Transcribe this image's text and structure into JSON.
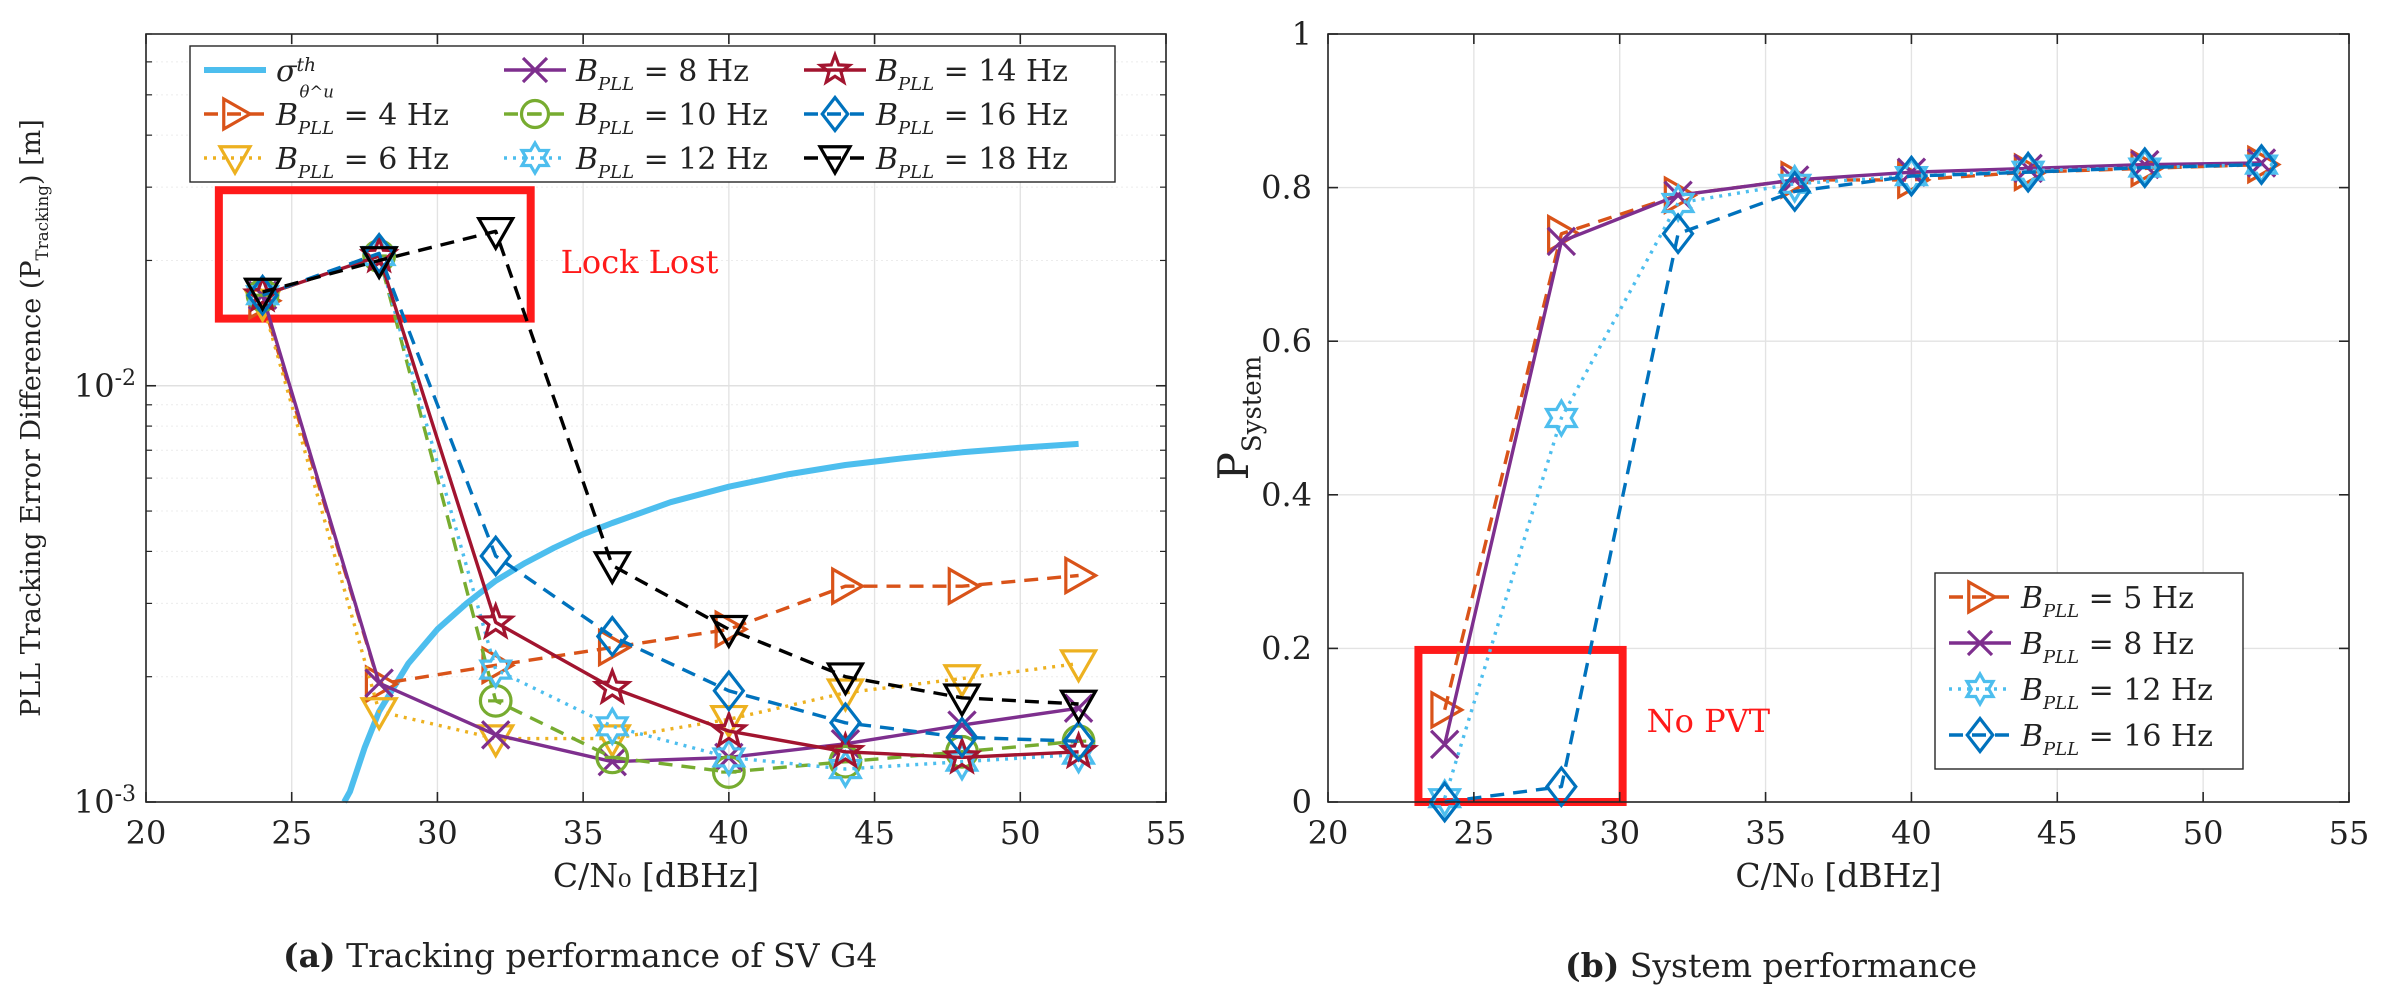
{
  "chart_data": [
    {
      "type": "line",
      "title": "",
      "xlabel": "C/N₀ [dBHz]",
      "ylabel": "PLL Tracking Error Difference (P_Tracking) [m]",
      "xlim": [
        20,
        55
      ],
      "ylim": [
        0.001,
        0.07
      ],
      "yscale": "log",
      "grid": true,
      "legend_position": "top-left",
      "xticks": [
        "20",
        "25",
        "30",
        "35",
        "40",
        "45",
        "50",
        "55"
      ],
      "yticks": [
        "10^-3",
        "10^-2"
      ],
      "series": [
        {
          "name": "σ_θ^u th",
          "legend_base": "σ",
          "legend_sup": "th",
          "legend_sub": "θ^u",
          "color": "#4DBEEE",
          "dash": "",
          "marker": "none",
          "x": [
            26.8,
            27,
            27.5,
            28,
            29,
            30,
            31,
            32,
            33,
            34,
            35,
            36,
            38,
            40,
            42,
            44,
            46,
            48,
            50,
            52
          ],
          "y": [
            0.00095,
            0.00106,
            0.00135,
            0.00165,
            0.00215,
            0.0026,
            0.003,
            0.0034,
            0.00375,
            0.00408,
            0.0044,
            0.00468,
            0.00525,
            0.00572,
            0.00612,
            0.00645,
            0.0067,
            0.00692,
            0.0071,
            0.00725
          ]
        },
        {
          "name": "B_PLL = 4 Hz",
          "legend_base": "B",
          "legend_sub": "PLL",
          "legend_rest": " = 4 Hz",
          "color": "#D95319",
          "dash": "14,9",
          "marker": "triangle-right",
          "x": [
            24,
            28,
            32,
            36,
            40,
            44,
            48,
            52
          ],
          "y": [
            0.016,
            0.00192,
            0.00213,
            0.00235,
            0.0026,
            0.0033,
            0.0033,
            0.0035
          ]
        },
        {
          "name": "B_PLL = 6 Hz",
          "legend_base": "B",
          "legend_sub": "PLL",
          "legend_rest": " = 6 Hz",
          "color": "#EDB120",
          "dash": "3,6",
          "marker": "triangle-down",
          "x": [
            24,
            28,
            32,
            36,
            40,
            44,
            48,
            52
          ],
          "y": [
            0.0158,
            0.00165,
            0.00142,
            0.00142,
            0.00158,
            0.00183,
            0.00198,
            0.00215
          ]
        },
        {
          "name": "B_PLL = 8 Hz",
          "legend_base": "B",
          "legend_sub": "PLL",
          "legend_rest": " = 8 Hz",
          "color": "#7E2F8E",
          "dash": "",
          "marker": "x",
          "x": [
            24,
            28,
            32,
            36,
            40,
            44,
            48,
            52
          ],
          "y": [
            0.0165,
            0.00193,
            0.00145,
            0.00125,
            0.00128,
            0.00138,
            0.00153,
            0.00168
          ]
        },
        {
          "name": "B_PLL = 10 Hz",
          "legend_base": "B",
          "legend_sub": "PLL",
          "legend_rest": " = 10 Hz",
          "color": "#77AC30",
          "dash": "14,9",
          "marker": "circle-minus",
          "x": [
            24,
            28,
            32,
            36,
            40,
            44,
            48,
            52
          ],
          "y": [
            0.0165,
            0.0205,
            0.00175,
            0.00128,
            0.00118,
            0.00125,
            0.00132,
            0.0014
          ]
        },
        {
          "name": "B_PLL = 12 Hz",
          "legend_base": "B",
          "legend_sub": "PLL",
          "legend_rest": " = 12 Hz",
          "color": "#4DBEEE",
          "dash": "3,6",
          "marker": "hexagram",
          "x": [
            24,
            28,
            32,
            36,
            40,
            44,
            48,
            52
          ],
          "y": [
            0.0165,
            0.0205,
            0.00208,
            0.00152,
            0.00128,
            0.0012,
            0.00125,
            0.0013
          ]
        },
        {
          "name": "B_PLL = 14 Hz",
          "legend_base": "B",
          "legend_sub": "PLL",
          "legend_rest": " = 14 Hz",
          "color": "#A2142F",
          "dash": "",
          "marker": "pentagram",
          "x": [
            24,
            28,
            32,
            36,
            40,
            44,
            48,
            52
          ],
          "y": [
            0.0165,
            0.0205,
            0.0027,
            0.00188,
            0.00148,
            0.00132,
            0.00128,
            0.00132
          ]
        },
        {
          "name": "B_PLL = 16 Hz",
          "legend_base": "B",
          "legend_sub": "PLL",
          "legend_rest": " = 16 Hz",
          "color": "#0072BD",
          "dash": "14,9",
          "marker": "diamond",
          "x": [
            24,
            28,
            32,
            36,
            40,
            44,
            48,
            52
          ],
          "y": [
            0.0165,
            0.0208,
            0.0039,
            0.0025,
            0.00185,
            0.00155,
            0.00143,
            0.0014
          ]
        },
        {
          "name": "B_PLL = 18 Hz",
          "legend_base": "B",
          "legend_sub": "PLL",
          "legend_rest": " = 18 Hz",
          "color": "#000000",
          "dash": "14,9",
          "marker": "triangle-down",
          "x": [
            24,
            28,
            32,
            36,
            40,
            44,
            48,
            52
          ],
          "y": [
            0.0168,
            0.02,
            0.0235,
            0.0037,
            0.0026,
            0.002,
            0.00178,
            0.00172
          ]
        }
      ],
      "annotations": [
        {
          "text": "Lock Lost",
          "color": "#FF1A1A",
          "box": {
            "x": [
              22.5,
              33.2
            ],
            "y": [
              0.0145,
              0.0295
            ]
          }
        }
      ]
    },
    {
      "type": "line",
      "title": "",
      "xlabel": "C/N₀ [dBHz]",
      "ylabel": "P_System",
      "xlim": [
        20,
        55
      ],
      "ylim": [
        0,
        1
      ],
      "yscale": "linear",
      "grid": true,
      "legend_position": "bottom-right",
      "xticks": [
        "20",
        "25",
        "30",
        "35",
        "40",
        "45",
        "50",
        "55"
      ],
      "yticks": [
        "0",
        "0.2",
        "0.4",
        "0.6",
        "0.8",
        "1"
      ],
      "series": [
        {
          "name": "B_PLL = 5 Hz",
          "legend_base": "B",
          "legend_sub": "PLL",
          "legend_rest": " = 5 Hz",
          "color": "#D95319",
          "dash": "14,9",
          "marker": "triangle-right",
          "x": [
            24,
            28,
            32,
            36,
            40,
            44,
            48,
            52
          ],
          "y": [
            0.12,
            0.74,
            0.79,
            0.81,
            0.81,
            0.82,
            0.825,
            0.83
          ]
        },
        {
          "name": "B_PLL = 8 Hz",
          "legend_base": "B",
          "legend_sub": "PLL",
          "legend_rest": " = 8 Hz",
          "color": "#7E2F8E",
          "dash": "",
          "marker": "x",
          "x": [
            24,
            28,
            32,
            36,
            40,
            44,
            48,
            52
          ],
          "y": [
            0.075,
            0.73,
            0.79,
            0.81,
            0.82,
            0.825,
            0.83,
            0.832
          ]
        },
        {
          "name": "B_PLL = 12 Hz",
          "legend_base": "B",
          "legend_sub": "PLL",
          "legend_rest": " = 12 Hz",
          "color": "#4DBEEE",
          "dash": "3,6",
          "marker": "hexagram",
          "x": [
            24,
            28,
            32,
            36,
            40,
            44,
            48,
            52
          ],
          "y": [
            0.005,
            0.5,
            0.78,
            0.805,
            0.815,
            0.822,
            0.826,
            0.83
          ]
        },
        {
          "name": "B_PLL = 16 Hz",
          "legend_base": "B",
          "legend_sub": "PLL",
          "legend_rest": " = 16 Hz",
          "color": "#0072BD",
          "dash": "14,9",
          "marker": "diamond",
          "x": [
            24,
            28,
            32,
            36,
            40,
            44,
            48,
            52
          ],
          "y": [
            0.0,
            0.02,
            0.74,
            0.795,
            0.815,
            0.82,
            0.826,
            0.83
          ]
        }
      ],
      "annotations": [
        {
          "text": "No PVT",
          "color": "#FF1A1A",
          "box": {
            "x": [
              23.1,
              30.1
            ],
            "y": [
              0,
              0.198
            ]
          }
        }
      ]
    }
  ],
  "captions": [
    {
      "label": "(a)",
      "text": " Tracking performance of SV G4"
    },
    {
      "label": "(b)",
      "text": " System performance"
    }
  ]
}
